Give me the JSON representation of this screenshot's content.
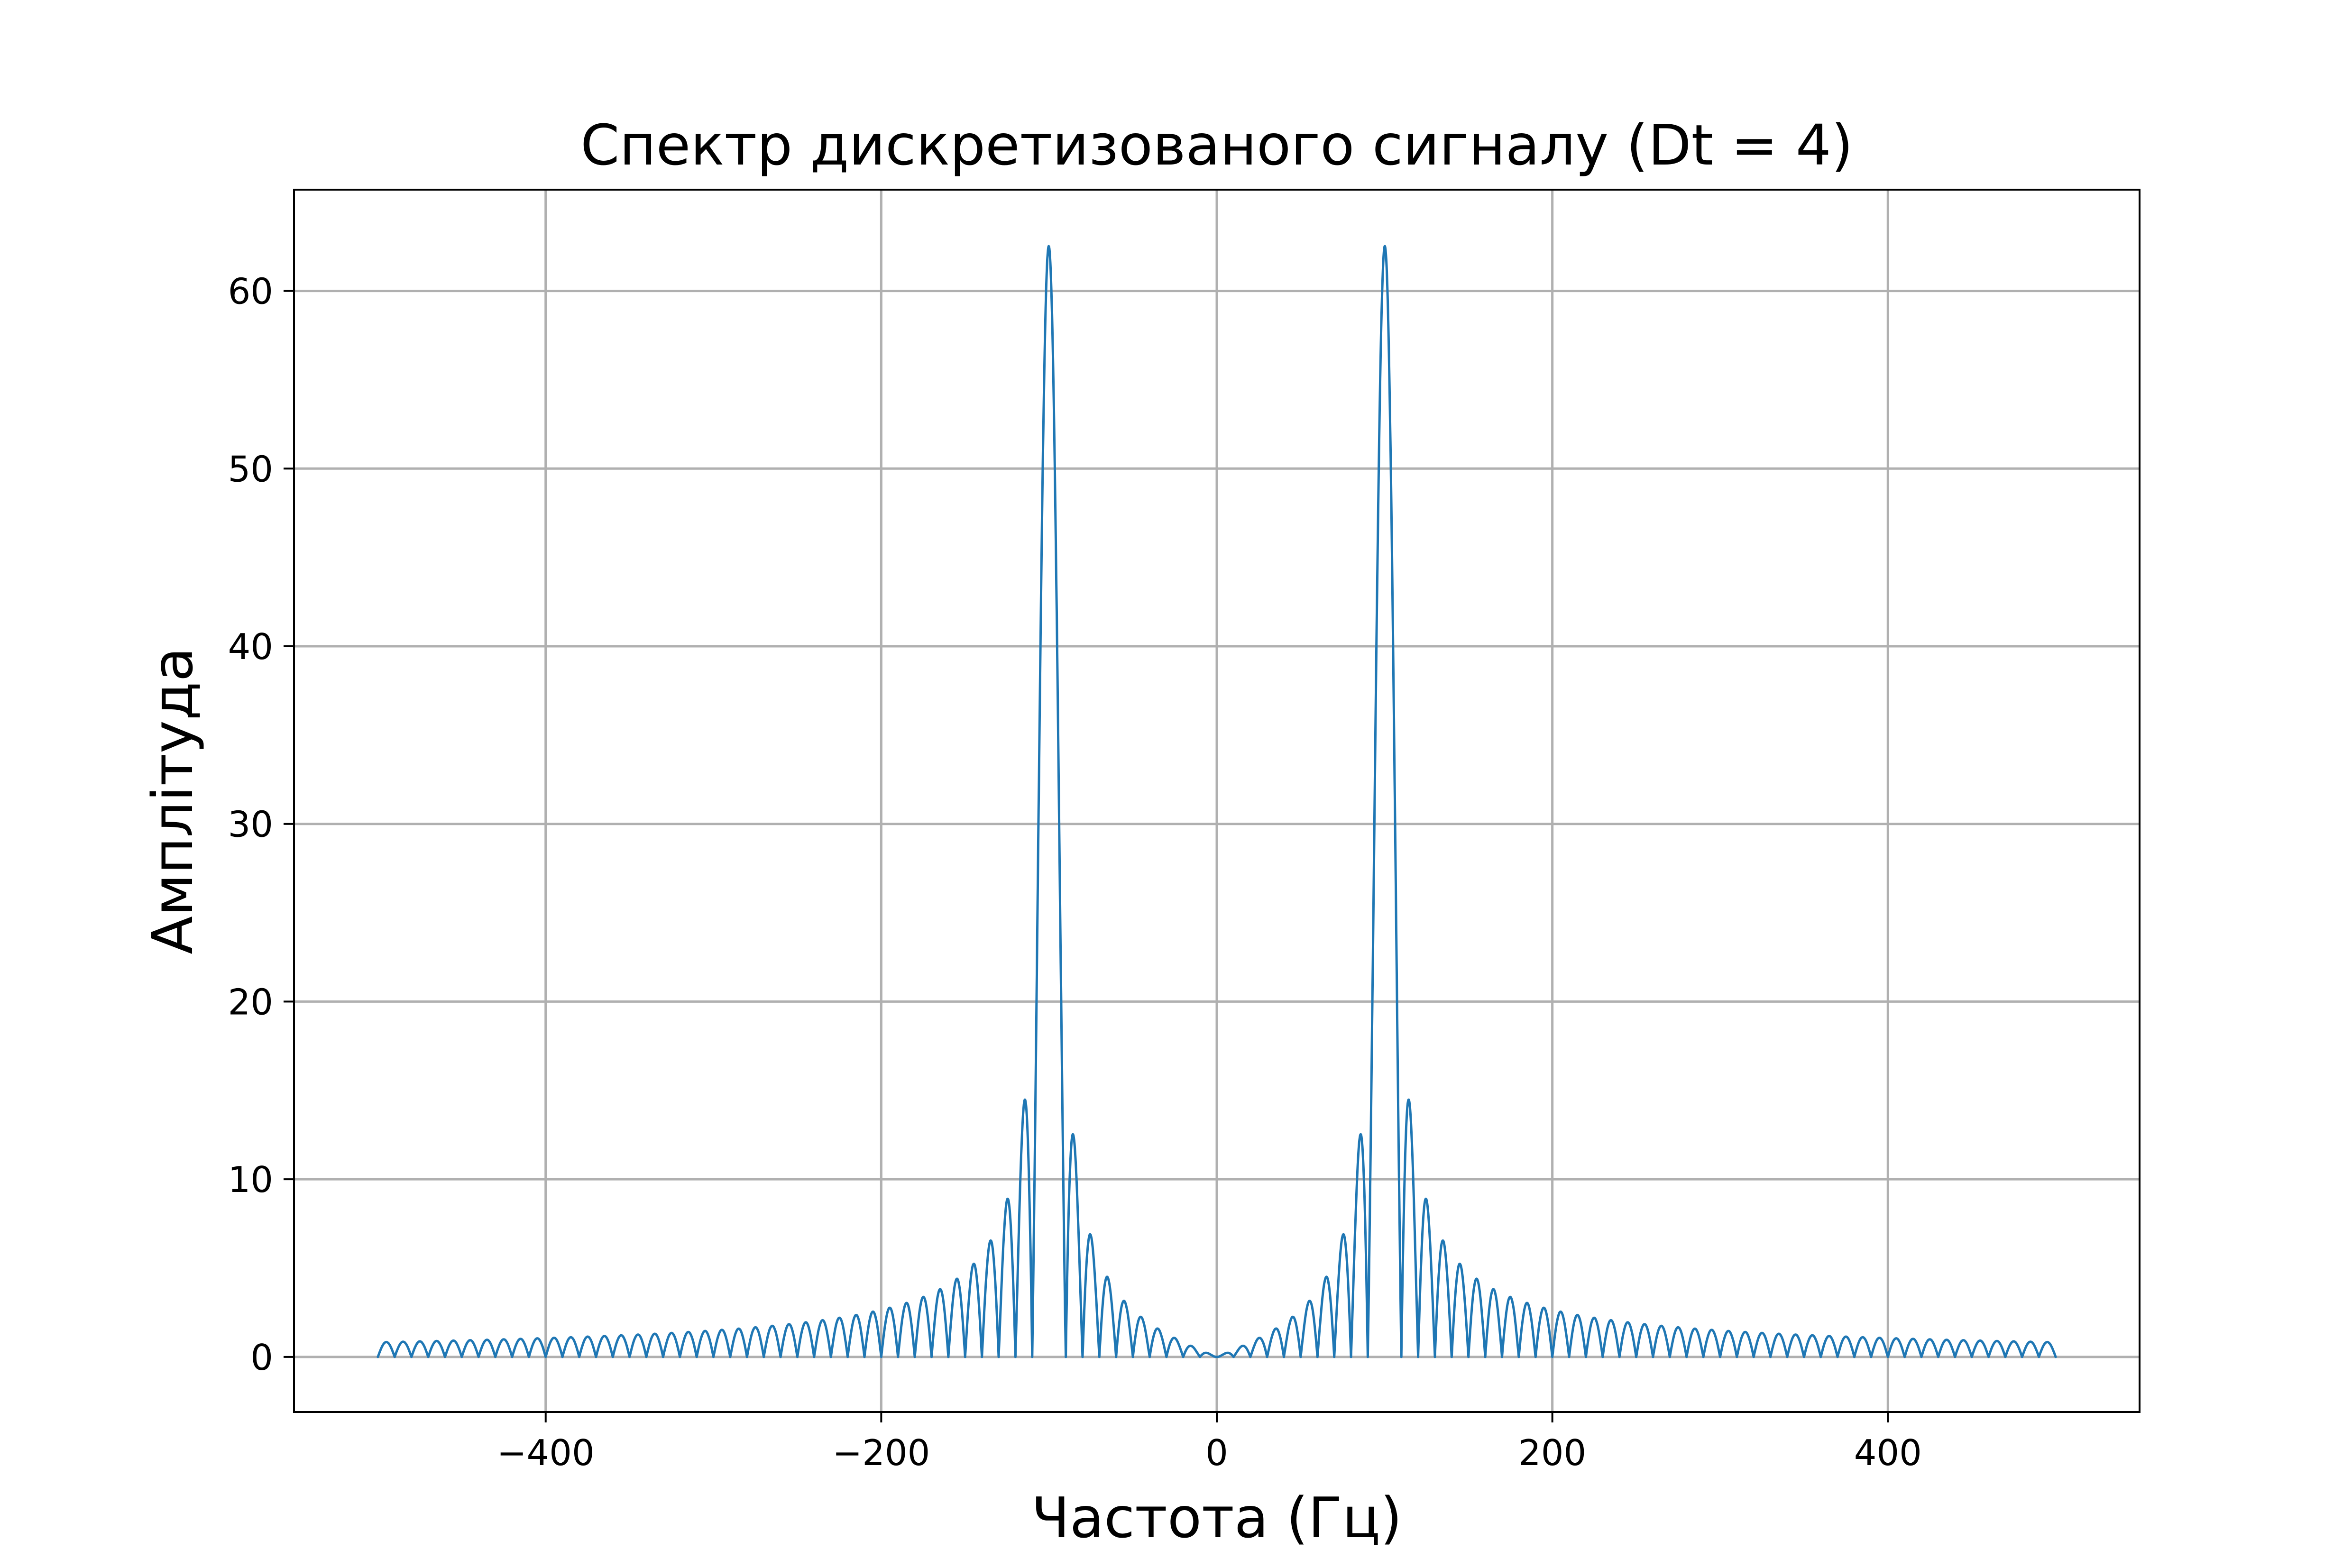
{
  "chart_data": {
    "type": "line",
    "title": "Спектр дискретизованого сигналу (Dt = 4)",
    "xlabel": "Частота (Гц)",
    "ylabel": "Амплітуда",
    "xlim": [
      -550,
      550
    ],
    "ylim": [
      -3.1,
      65.7
    ],
    "xticks": [
      -400,
      -200,
      0,
      200,
      400
    ],
    "xtick_labels": [
      "−400",
      "−200",
      "0",
      "200",
      "400"
    ],
    "yticks": [
      0,
      10,
      20,
      30,
      40,
      50,
      60
    ],
    "ytick_labels": [
      "0",
      "10",
      "20",
      "30",
      "40",
      "50",
      "60"
    ],
    "grid": true,
    "series": [
      {
        "color": "#1f77b4",
        "x_range": [
          -500,
          500
        ],
        "peaks": [
          {
            "x": -100,
            "y": 62.5
          },
          {
            "x": 100,
            "y": 62.5
          }
        ],
        "lobe_spacing": 10,
        "floor_value_at_edges": 0.3
      }
    ]
  }
}
